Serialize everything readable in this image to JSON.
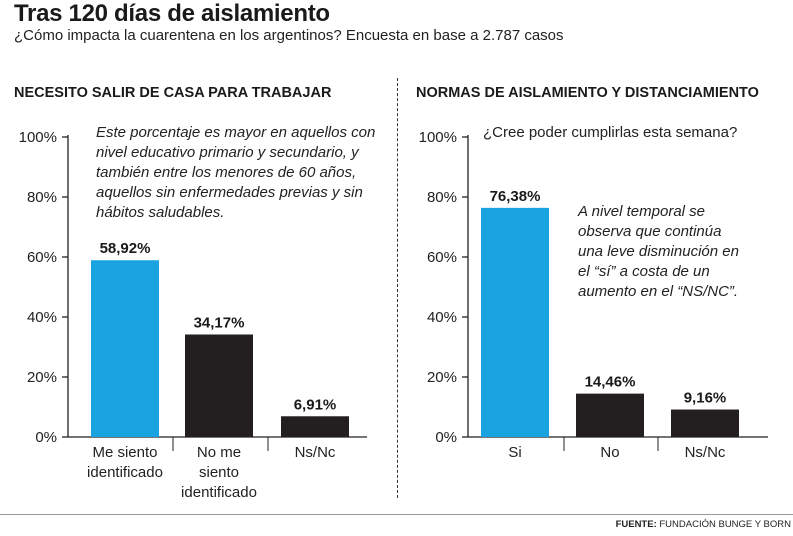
{
  "title": "Tras 120 días de aislamiento",
  "subtitle": "¿Cómo impacta la cuarentena en los argentinos? Encuesta en base a 2.787 casos",
  "source_label": "FUENTE:",
  "source_text": "FUNDACIÓN BUNGE Y BORN",
  "colors": {
    "highlight": "#1aa3e1",
    "dark": "#231f20"
  },
  "chart_data": [
    {
      "type": "bar",
      "title": "NECESITO SALIR DE CASA PARA TRABAJAR",
      "note": "Este porcentaje es mayor en aquellos con nivel educativo primario y secundario, y también entre los menores de 60 años, aquellos sin enfermedades previas y sin hábitos saludables.",
      "categories": [
        "Me siento identificado",
        "No me siento identificado",
        "Ns/Nc"
      ],
      "category_lines": [
        [
          "Me siento",
          "identificado"
        ],
        [
          "No me",
          "siento",
          "identificado"
        ],
        [
          "Ns/Nc"
        ]
      ],
      "values": [
        58.92,
        34.17,
        6.91
      ],
      "value_labels": [
        "58,92%",
        "34,17%",
        "6,91%"
      ],
      "colors": [
        "#1aa3e1",
        "#231f20",
        "#231f20"
      ],
      "yticks": [
        "0%",
        "20%",
        "40%",
        "60%",
        "80%",
        "100%"
      ],
      "ylim": [
        0,
        100
      ]
    },
    {
      "type": "bar",
      "title": "NORMAS DE AISLAMIENTO Y DISTANCIAMIENTO",
      "question": "¿Cree poder cumplirlas esta semana?",
      "note": "A nivel temporal se observa que continúa una leve disminución en el “sí” a costa de un aumento en el “NS/NC”.",
      "categories": [
        "Si",
        "No",
        "Ns/Nc"
      ],
      "category_lines": [
        [
          "Si"
        ],
        [
          "No"
        ],
        [
          "Ns/Nc"
        ]
      ],
      "values": [
        76.38,
        14.46,
        9.16
      ],
      "value_labels": [
        "76,38%",
        "14,46%",
        "9,16%"
      ],
      "colors": [
        "#1aa3e1",
        "#231f20",
        "#231f20"
      ],
      "yticks": [
        "0%",
        "20%",
        "40%",
        "60%",
        "80%",
        "100%"
      ],
      "ylim": [
        0,
        100
      ]
    }
  ]
}
